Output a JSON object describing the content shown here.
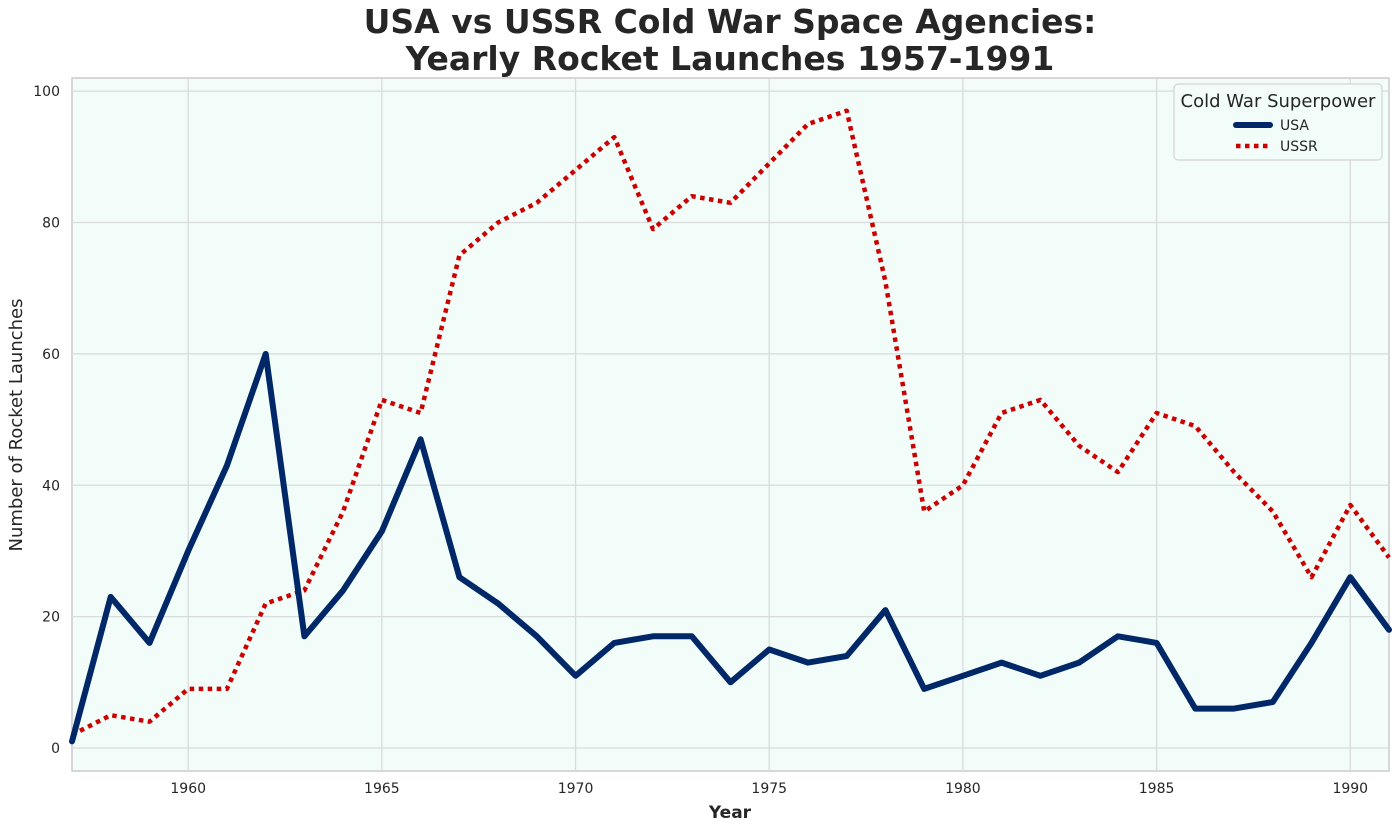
{
  "chart_data": {
    "type": "line",
    "title_lines": [
      "USA vs USSR Cold War Space Agencies:",
      "Yearly Rocket Launches 1957-1991"
    ],
    "xlabel": "Year",
    "ylabel": "Number of Rocket Launches",
    "xlim": [
      1957,
      1991
    ],
    "ylim": [
      -3.5,
      102
    ],
    "x_ticks": [
      1960,
      1965,
      1970,
      1975,
      1980,
      1985,
      1990
    ],
    "y_ticks": [
      0,
      20,
      40,
      60,
      80,
      100
    ],
    "grid": true,
    "background_color": "#f2fcf8",
    "legend": {
      "title": "Cold War Superpower",
      "placement": "top-right"
    },
    "x": [
      1957,
      1958,
      1959,
      1960,
      1961,
      1962,
      1963,
      1964,
      1965,
      1966,
      1967,
      1968,
      1969,
      1970,
      1971,
      1972,
      1973,
      1974,
      1975,
      1976,
      1977,
      1978,
      1979,
      1980,
      1981,
      1982,
      1983,
      1984,
      1985,
      1986,
      1987,
      1988,
      1989,
      1990,
      1991
    ],
    "series": [
      {
        "name": "USA",
        "color": "#002868",
        "style": "solid",
        "values": [
          1,
          23,
          16,
          30,
          43,
          60,
          17,
          24,
          33,
          47,
          26,
          22,
          17,
          11,
          16,
          17,
          17,
          10,
          15,
          13,
          14,
          21,
          9,
          11,
          13,
          11,
          13,
          17,
          16,
          6,
          6,
          7,
          16,
          26,
          18
        ]
      },
      {
        "name": "USSR",
        "color": "#cc0000",
        "style": "dotted",
        "values": [
          2,
          5,
          4,
          9,
          9,
          22,
          24,
          36,
          53,
          51,
          75,
          80,
          83,
          88,
          93,
          79,
          84,
          83,
          89,
          95,
          97,
          71,
          36,
          40,
          51,
          53,
          46,
          42,
          51,
          49,
          42,
          36,
          26,
          37,
          29
        ]
      }
    ]
  }
}
